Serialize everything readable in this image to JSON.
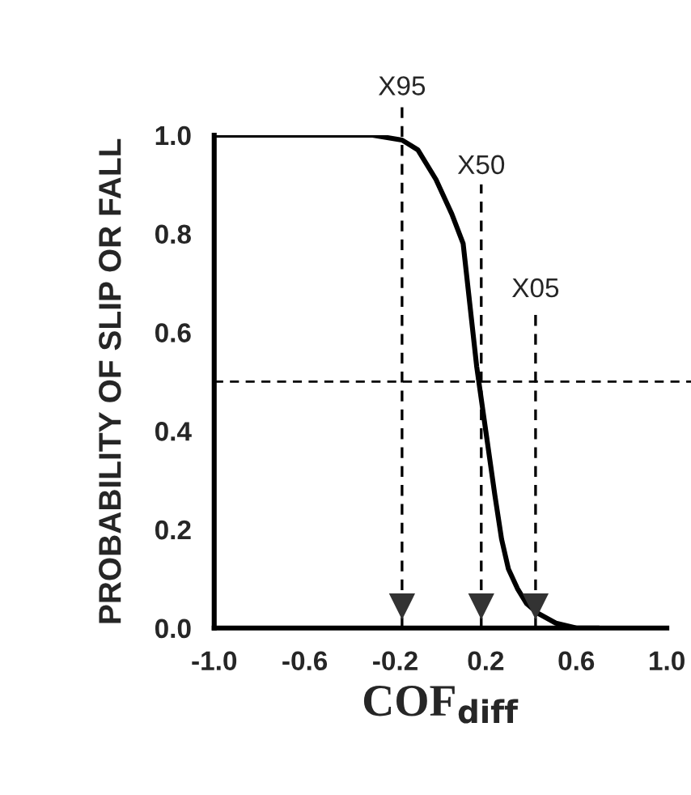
{
  "chart_data": {
    "type": "line",
    "xlabel": "COF$_{diff}$",
    "ylabel": "PROBABILITY OF SLIP OR FALL",
    "x": [
      -1.0,
      -0.6,
      -0.3,
      -0.17,
      -0.1,
      -0.02,
      0.05,
      0.1,
      0.16,
      0.2,
      0.24,
      0.27,
      0.3,
      0.34,
      0.38,
      0.43,
      0.51,
      0.6,
      0.7
    ],
    "series": [
      {
        "color": "#000000",
        "values": [
          1.0,
          1.0,
          1.0,
          0.99,
          0.97,
          0.91,
          0.84,
          0.78,
          0.53,
          0.4,
          0.27,
          0.18,
          0.12,
          0.08,
          0.05,
          0.03,
          0.01,
          0.0,
          0.0
        ]
      }
    ],
    "xlim": [
      -1.0,
      1.0
    ],
    "ylim": [
      0.0,
      1.0
    ],
    "xticks": [
      {
        "value": -1.0,
        "label": "-1.0"
      },
      -0.6,
      -0.2,
      0.2,
      0.6,
      {
        "value": 1.0,
        "label": "1.0"
      }
    ],
    "yticks": [
      {
        "value": 0.0,
        "label": "0.0"
      },
      0.2,
      0.4,
      0.6,
      0.8,
      {
        "value": 1.0,
        "label": "1.0"
      }
    ],
    "ref_lines": [
      {
        "axis": "y",
        "value": 0.5,
        "line_style": "dashed"
      },
      {
        "axis": "x",
        "value": -0.17,
        "label": "X95",
        "line_style": "dashed"
      },
      {
        "axis": "x",
        "value": 0.18,
        "label": "X50",
        "line_style": "dashed"
      },
      {
        "axis": "x",
        "value": 0.42,
        "label": "X05",
        "line_style": "dashed"
      }
    ],
    "grid": false,
    "marker": "none",
    "line_style": "solid"
  }
}
